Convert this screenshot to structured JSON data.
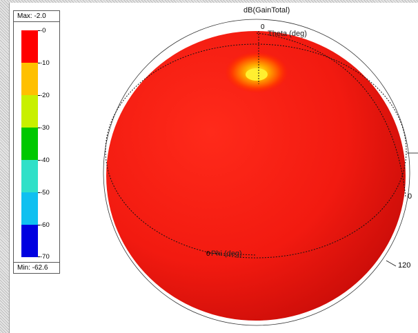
{
  "plot": {
    "title": "dB(GainTotal)",
    "theta_label": "Theta (deg)",
    "phi_label": "Phi (deg)",
    "theta_tick": "0",
    "phi_tick": "0",
    "right_tick": "0",
    "ring_tick": "120"
  },
  "legend": {
    "max_label": "Max: -2.0",
    "min_label": "Min: -62.6",
    "ticks": [
      "-0",
      "-10",
      "-20",
      "-30",
      "-40",
      "-50",
      "-60",
      "-70"
    ],
    "colors": [
      "#ff0000",
      "#ffc000",
      "#c8f000",
      "#00c800",
      "#30e0c8",
      "#10c0f0",
      "#0000e0"
    ]
  }
}
